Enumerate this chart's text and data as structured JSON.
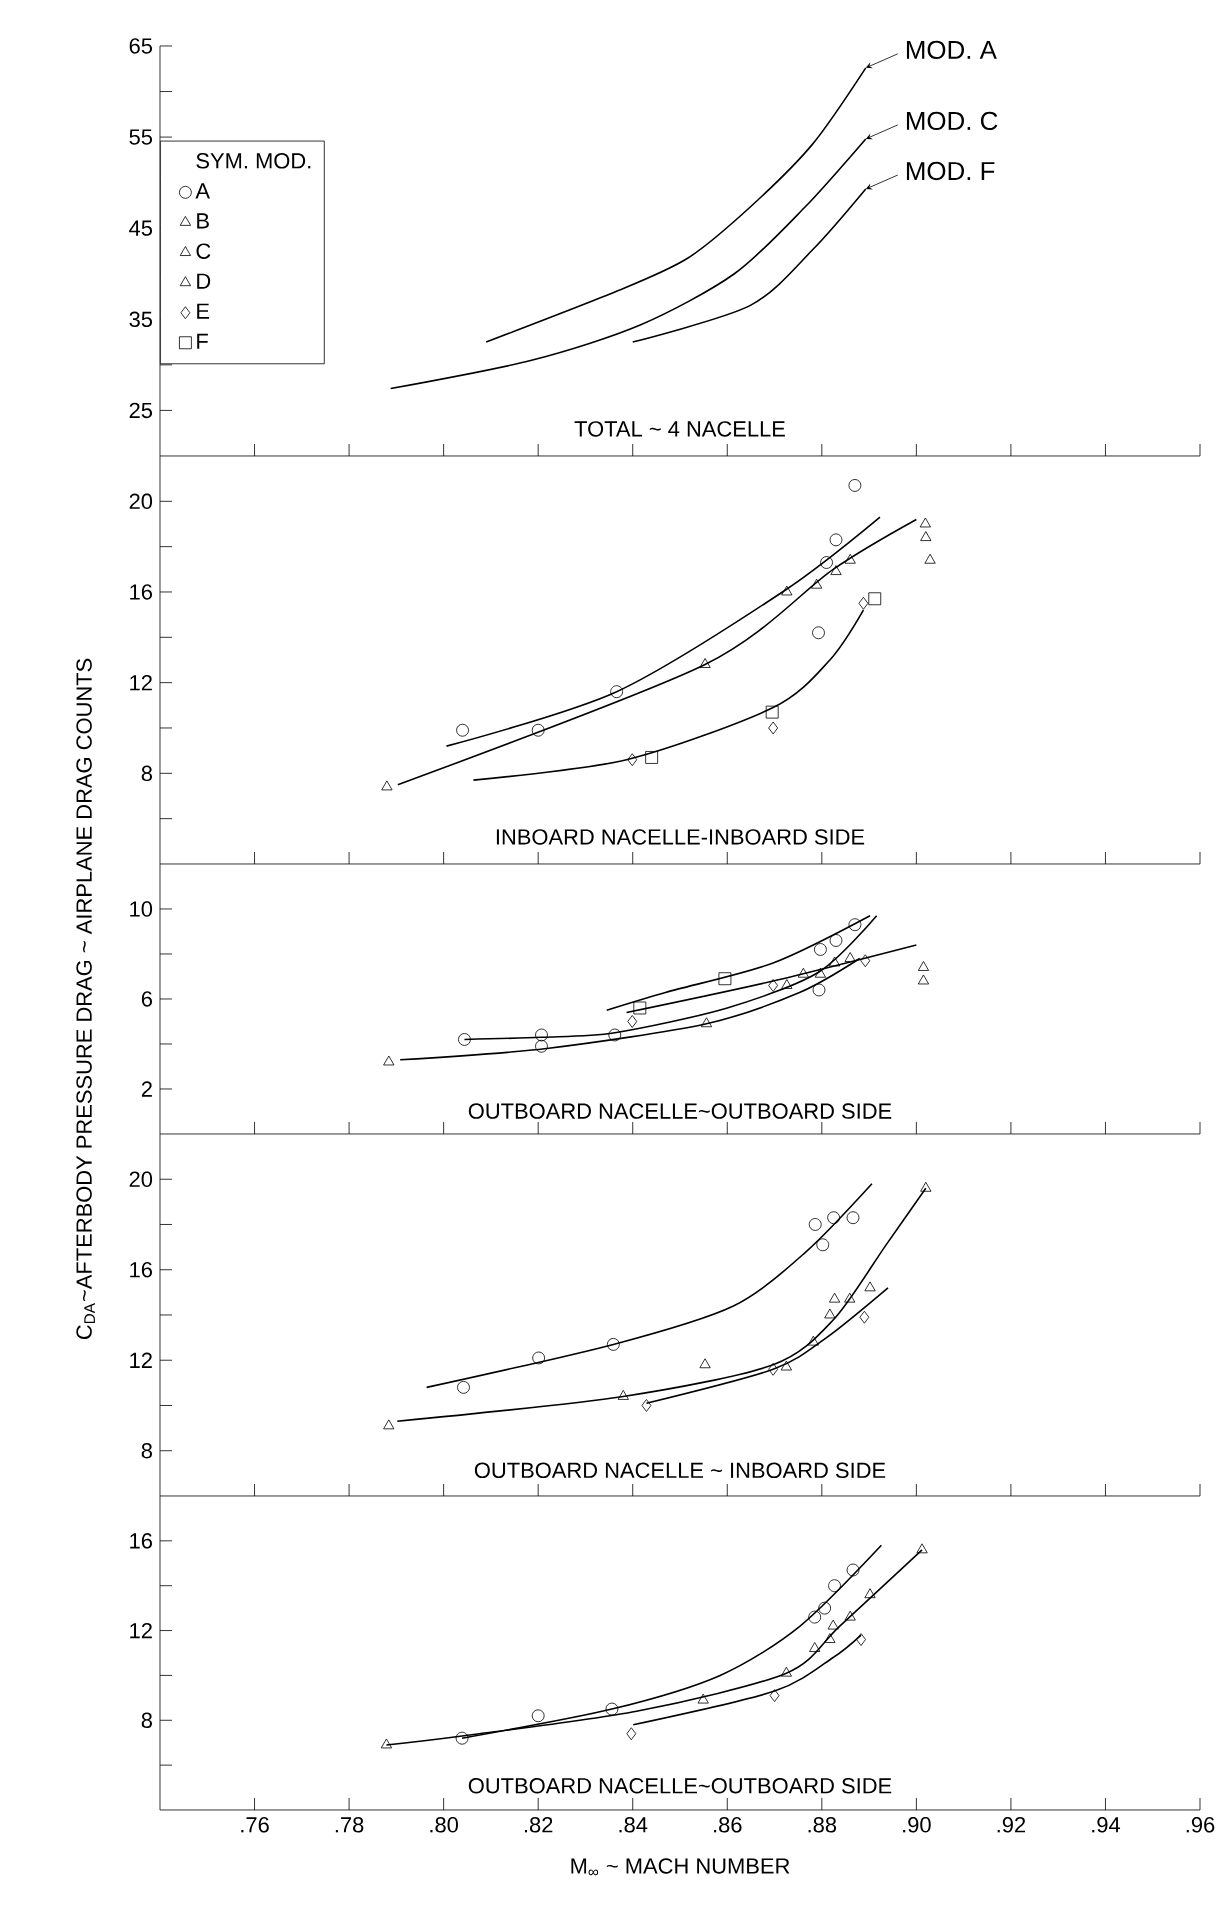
{
  "chart_data": [
    {
      "type": "line",
      "title": "TOTAL ~ 4 NACELLE",
      "xlim": [
        0.74,
        0.96
      ],
      "ylim": [
        20,
        65
      ],
      "xticks": [
        0.76,
        0.78,
        0.8,
        0.82,
        0.84,
        0.86,
        0.88,
        0.9,
        0.92,
        0.94,
        0.96
      ],
      "yticks": [
        25,
        {
          "value": 30,
          "label": null
        },
        35,
        {
          "value": 40,
          "label": null
        },
        45,
        {
          "value": 50,
          "label": null
        },
        55,
        {
          "value": 60,
          "label": null
        },
        65
      ],
      "tick_labels": "y",
      "legend": "right",
      "series": [
        {
          "name": "MOD. A",
          "color": "#000000",
          "x": [
            0.809,
            0.8367,
            0.8516,
            0.8648,
            0.878,
            0.8893
          ],
          "values": [
            32.5,
            38.1,
            41.7,
            47.3,
            54.2,
            62.6
          ]
        },
        {
          "name": "MOD. C",
          "color": "#000000",
          "x": [
            0.7888,
            0.8186,
            0.8417,
            0.8615,
            0.8764,
            0.8893
          ],
          "values": [
            27.4,
            30.5,
            34.4,
            40.0,
            47.3,
            54.8
          ]
        },
        {
          "name": "MOD. F",
          "color": "#000000",
          "x": [
            0.84,
            0.8648,
            0.878,
            0.8893
          ],
          "values": [
            32.5,
            36.5,
            42.6,
            49.3
          ]
        }
      ]
    },
    {
      "type": "scatter",
      "title": "INBOARD NACELLE-INBOARD SIDE",
      "xlim": [
        0.74,
        0.96
      ],
      "ylim": [
        4,
        22
      ],
      "xticks": [
        0.76,
        0.78,
        0.8,
        0.82,
        0.84,
        0.86,
        0.88,
        0.9,
        0.92,
        0.94,
        0.96
      ],
      "yticks": [
        {
          "value": 6,
          "label": null
        },
        8,
        {
          "value": 10,
          "label": null
        },
        12,
        {
          "value": 14,
          "label": null
        },
        16,
        {
          "value": 18,
          "label": null
        },
        20
      ],
      "tick_labels": "y",
      "legend": "top left",
      "legend_title": "SYM.    MOD.",
      "series": [
        {
          "name": "A",
          "color": "#000000",
          "marker": "circle",
          "x": [
            0.804,
            0.82,
            0.8366,
            0.8793,
            0.881,
            0.883,
            0.887
          ],
          "values": [
            9.9,
            9.9,
            11.6,
            14.2,
            17.3,
            18.3,
            20.7
          ]
        },
        {
          "name": "B",
          "color": "#000000",
          "marker": "triangle",
          "x": [
            0.788,
            0.8553,
            0.8789,
            0.883,
            0.886,
            0.9019
          ],
          "values": [
            7.4,
            12.8,
            16.3,
            16.9,
            17.4,
            19.0
          ]
        },
        {
          "name": "C",
          "color": "#000000",
          "marker": "triangle",
          "x": [
            0.8726,
            0.902
          ],
          "values": [
            16.0,
            18.4
          ]
        },
        {
          "name": "D",
          "color": "#000000",
          "marker": "triangle",
          "x": [
            0.9029
          ],
          "values": [
            17.4
          ]
        },
        {
          "name": "E",
          "color": "#000000",
          "marker": "diamond",
          "x": [
            0.8399,
            0.8697,
            0.8888
          ],
          "values": [
            8.6,
            10.0,
            15.5
          ]
        },
        {
          "name": "F",
          "color": "#000000",
          "marker": "square",
          "x": [
            0.844,
            0.8695,
            0.8912
          ],
          "values": [
            8.7,
            10.7,
            15.7
          ]
        },
        {
          "type": "line",
          "color": "#000000",
          "x": [
            0.8006,
            0.8366,
            0.8724,
            0.8923
          ],
          "values": [
            9.2,
            11.6,
            16.1,
            19.3
          ]
        },
        {
          "type": "line",
          "color": "#000000",
          "x": [
            0.7903,
            0.8553,
            0.8824,
            0.9
          ],
          "values": [
            7.5,
            12.8,
            17.0,
            19.2
          ]
        },
        {
          "type": "line",
          "color": "#000000",
          "x": [
            0.8063,
            0.8387,
            0.8697,
            0.8817,
            0.8888
          ],
          "values": [
            7.7,
            8.6,
            10.9,
            13.0,
            15.2
          ]
        }
      ]
    },
    {
      "type": "scatter",
      "title": "OUTBOARD NACELLE~OUTBOARD SIDE",
      "ylabel": "C$_{DA}$~AFTERBODY  PRESSURE  DRAG ~ AIRPLANE  DRAG COUNTS",
      "xlim": [
        0.74,
        0.96
      ],
      "ylim": [
        0,
        12
      ],
      "xticks": [
        0.76,
        0.78,
        0.8,
        0.82,
        0.84,
        0.86,
        0.88,
        0.9,
        0.92,
        0.94,
        0.96
      ],
      "yticks": [
        2,
        {
          "value": 4,
          "label": null
        },
        6,
        {
          "value": 8,
          "label": null
        },
        10
      ],
      "tick_labels": "y",
      "series": [
        {
          "color": "#000000",
          "marker": "circle",
          "x": [
            0.8044,
            0.8207,
            0.8207,
            0.8362,
            0.8794,
            0.8797,
            0.883,
            0.887
          ],
          "values": [
            4.2,
            4.4,
            3.9,
            4.4,
            6.4,
            8.2,
            8.6,
            9.3
          ]
        },
        {
          "color": "#000000",
          "marker": "triangle",
          "x": [
            0.7884,
            0.8556,
            0.8726,
            0.8797,
            0.8827,
            0.886,
            0.9015
          ],
          "values": [
            3.2,
            4.9,
            6.6,
            7.1,
            7.6,
            7.8,
            6.8
          ]
        },
        {
          "color": "#000000",
          "marker": "triangle",
          "x": [
            0.8761,
            0.9015
          ],
          "values": [
            7.1,
            7.4
          ]
        },
        {
          "color": "#000000",
          "marker": "diamond",
          "x": [
            0.8399,
            0.8697,
            0.8892
          ],
          "values": [
            5.0,
            6.6,
            7.7
          ]
        },
        {
          "color": "#000000",
          "marker": "square",
          "x": [
            0.8415,
            0.8595
          ],
          "values": [
            5.6,
            6.9
          ]
        },
        {
          "type": "line",
          "color": "#000000",
          "x": [
            0.8044,
            0.8207,
            0.8362,
            0.86,
            0.8794,
            0.8916
          ],
          "values": [
            4.2,
            4.3,
            4.5,
            5.6,
            7.2,
            9.7
          ]
        },
        {
          "type": "line",
          "color": "#000000",
          "x": [
            0.8345,
            0.8471,
            0.8697,
            0.8902
          ],
          "values": [
            5.5,
            6.3,
            7.6,
            9.7
          ]
        },
        {
          "type": "line",
          "color": "#000000",
          "x": [
            0.8387,
            0.8697,
            0.9
          ],
          "values": [
            5.4,
            6.8,
            8.4
          ]
        },
        {
          "type": "line",
          "color": "#000000",
          "x": [
            0.7908,
            0.8218,
            0.8556,
            0.8754,
            0.888
          ],
          "values": [
            3.3,
            3.8,
            4.9,
            6.3,
            7.8
          ]
        }
      ]
    },
    {
      "type": "scatter",
      "title": "OUTBOARD NACELLE ~ INBOARD SIDE",
      "xlim": [
        0.74,
        0.96
      ],
      "ylim": [
        6,
        22
      ],
      "xticks": [
        0.76,
        0.78,
        0.8,
        0.82,
        0.84,
        0.86,
        0.88,
        0.9,
        0.92,
        0.94,
        0.96
      ],
      "yticks": [
        8,
        {
          "value": 10,
          "label": null
        },
        12,
        {
          "value": 14,
          "label": null
        },
        16,
        {
          "value": 18,
          "label": null
        },
        20
      ],
      "tick_labels": "y",
      "series": [
        {
          "color": "#000000",
          "marker": "circle",
          "x": [
            0.8042,
            0.8201,
            0.8359,
            0.8786,
            0.8802,
            0.8825,
            0.8866
          ],
          "values": [
            10.8,
            12.1,
            12.7,
            18.0,
            17.1,
            18.3,
            18.3
          ]
        },
        {
          "color": "#000000",
          "marker": "triangle",
          "x": [
            0.7884,
            0.838,
            0.8553,
            0.8725,
            0.8782,
            0.8817,
            0.8827,
            0.8859,
            0.8902,
            0.902
          ],
          "values": [
            9.1,
            10.4,
            11.8,
            11.7,
            12.8,
            14.0,
            14.7,
            14.7,
            15.2,
            19.6
          ]
        },
        {
          "color": "#000000",
          "marker": "diamond",
          "x": [
            0.8429,
            0.8697,
            0.889
          ],
          "values": [
            10.0,
            11.6,
            13.9
          ]
        },
        {
          "type": "line",
          "color": "#000000",
          "x": [
            0.7964,
            0.8359,
            0.8613,
            0.8767,
            0.8906
          ],
          "values": [
            10.8,
            12.7,
            14.4,
            16.8,
            19.8
          ]
        },
        {
          "type": "line",
          "color": "#000000",
          "x": [
            0.7902,
            0.838,
            0.8697,
            0.8825,
            0.8936,
            0.902
          ],
          "values": [
            9.3,
            10.4,
            11.8,
            13.8,
            17.1,
            19.6
          ]
        },
        {
          "type": "line",
          "color": "#000000",
          "x": [
            0.8429,
            0.8697,
            0.881,
            0.894
          ],
          "values": [
            10.1,
            11.6,
            13.0,
            15.2
          ]
        }
      ]
    },
    {
      "type": "scatter",
      "title": "OUTBOARD NACELLE~OUTBOARD SIDE",
      "xlabel": "M$_{∞}$ ~ MACH NUMBER",
      "xlim": [
        0.74,
        0.96
      ],
      "ylim": [
        4,
        18
      ],
      "xticks": [
        {
          "value": 0.76,
          "label": ".76"
        },
        {
          "value": 0.78,
          "label": ".78"
        },
        {
          "value": 0.8,
          "label": ".80"
        },
        {
          "value": 0.82,
          "label": ".82"
        },
        {
          "value": 0.84,
          "label": ".84"
        },
        {
          "value": 0.86,
          "label": ".86"
        },
        {
          "value": 0.88,
          "label": ".88"
        },
        {
          "value": 0.9,
          "label": ".90"
        },
        {
          "value": 0.92,
          "label": ".92"
        },
        {
          "value": 0.94,
          "label": ".94"
        },
        {
          "value": 0.96,
          "label": ".96"
        }
      ],
      "yticks": [
        {
          "value": 6,
          "label": null
        },
        8,
        {
          "value": 10,
          "label": null
        },
        12,
        {
          "value": 14,
          "label": null
        },
        16
      ],
      "series": [
        {
          "color": "#000000",
          "marker": "circle",
          "x": [
            0.8039,
            0.82,
            0.8356,
            0.8785,
            0.8806,
            0.8827,
            0.8866
          ],
          "values": [
            7.2,
            8.2,
            8.5,
            12.6,
            13.0,
            14.0,
            14.7
          ]
        },
        {
          "color": "#000000",
          "marker": "triangle",
          "x": [
            0.7879,
            0.8549,
            0.8725,
            0.8785,
            0.8817,
            0.8824,
            0.886,
            0.8902,
            0.9012
          ],
          "values": [
            6.9,
            8.9,
            10.1,
            11.2,
            11.6,
            12.2,
            12.6,
            13.6,
            15.6
          ]
        },
        {
          "color": "#000000",
          "marker": "diamond",
          "x": [
            0.8397,
            0.87,
            0.8883
          ],
          "values": [
            7.4,
            9.1,
            11.6
          ]
        },
        {
          "type": "line",
          "color": "#000000",
          "x": [
            0.8039,
            0.8356,
            0.8585,
            0.8754,
            0.8926
          ],
          "values": [
            7.2,
            8.5,
            10.0,
            12.2,
            15.8
          ]
        },
        {
          "type": "line",
          "color": "#000000",
          "x": [
            0.7879,
            0.8039,
            0.8408,
            0.8725,
            0.8838,
            0.9012
          ],
          "values": [
            6.9,
            7.3,
            8.4,
            10.1,
            12.2,
            15.6
          ]
        },
        {
          "type": "line",
          "color": "#000000",
          "x": [
            0.8401,
            0.87,
            0.8824,
            0.8883
          ],
          "values": [
            7.8,
            9.3,
            10.8,
            11.8
          ]
        }
      ]
    }
  ]
}
